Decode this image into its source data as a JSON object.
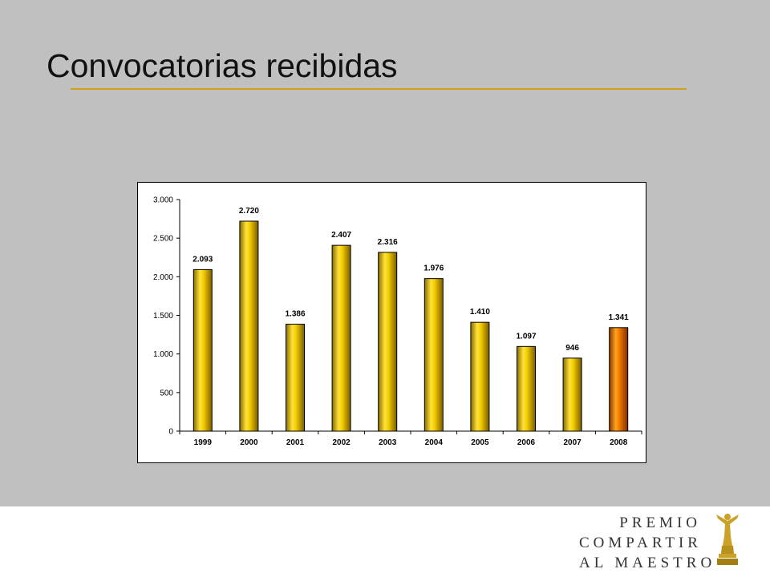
{
  "slide": {
    "title": "Convocatorias recibidas"
  },
  "logo": {
    "line1": "PREMIO",
    "line2": "COMPARTIR",
    "line3": "AL MAESTRO",
    "icon": "trophy-figure-icon"
  },
  "colors": {
    "background": "#c0c0c0",
    "title_underline": "#d4a017",
    "bar_gold": "#e6c200",
    "bar_highlight": "#e07b00",
    "logo_gold": "#c9a227"
  },
  "chart_data": {
    "type": "bar",
    "categories": [
      "1999",
      "2000",
      "2001",
      "2002",
      "2003",
      "2004",
      "2005",
      "2006",
      "2007",
      "2008"
    ],
    "values": [
      2093,
      2720,
      1386,
      2407,
      2316,
      1976,
      1410,
      1097,
      946,
      1341
    ],
    "value_labels": [
      "2.093",
      "2.720",
      "1.386",
      "2.407",
      "2.316",
      "1.976",
      "1.410",
      "1.097",
      "946",
      "1.341"
    ],
    "highlight_category": "2008",
    "ylim": [
      0,
      3000
    ],
    "yticks": [
      0,
      500,
      1000,
      1500,
      2000,
      2500,
      3000
    ],
    "ytick_labels": [
      "0",
      "500",
      "1.000",
      "1.500",
      "2.000",
      "2.500",
      "3.000"
    ],
    "grid": false,
    "title": "",
    "xlabel": "",
    "ylabel": ""
  }
}
